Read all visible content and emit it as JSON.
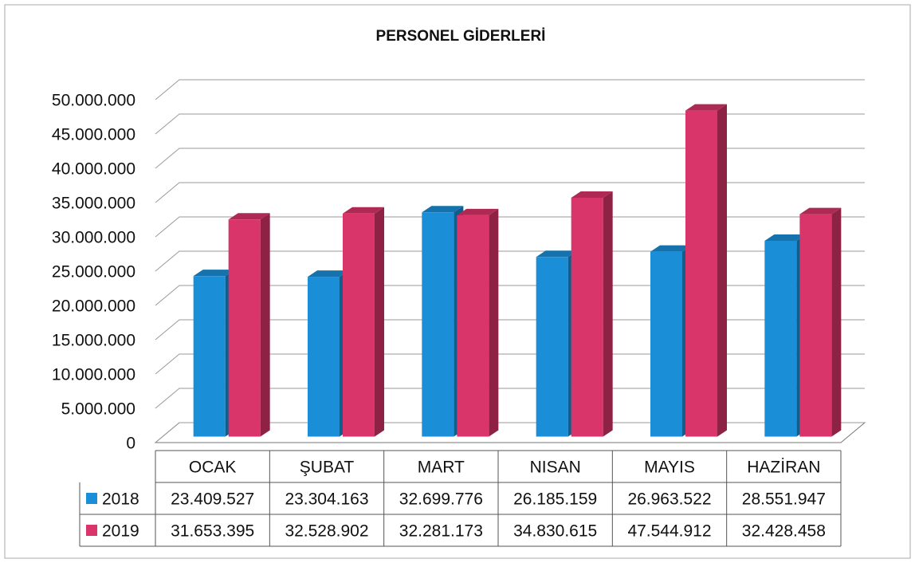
{
  "chart_data": {
    "type": "bar3d",
    "title": "PERSONEL GİDERLERİ",
    "categories": [
      "OCAK",
      "ŞUBAT",
      "MART",
      "NISAN",
      "MAYIS",
      "HAZİRAN"
    ],
    "series": [
      {
        "name": "2018",
        "color": "#1a8fd8",
        "values": [
          23409527,
          23304163,
          32699776,
          26185159,
          26963522,
          28551947
        ],
        "value_labels": [
          "23.409.527",
          "23.304.163",
          "32.699.776",
          "26.185.159",
          "26.963.522",
          "28.551.947"
        ]
      },
      {
        "name": "2019",
        "color": "#d9356a",
        "values": [
          31653395,
          32528902,
          32281173,
          34830615,
          47544912,
          32428458
        ],
        "value_labels": [
          "31.653.395",
          "32.528.902",
          "32.281.173",
          "34.830.615",
          "47.544.912",
          "32.428.458"
        ]
      }
    ],
    "ylim": [
      0,
      50000000
    ],
    "yticks": [
      0,
      {
        "value": 5000000,
        "label": "5.000.000"
      },
      {
        "value": 10000000,
        "label": "10.000.000"
      },
      {
        "value": 15000000,
        "label": "15.000.000"
      },
      {
        "value": 20000000,
        "label": "20.000.000"
      },
      {
        "value": 25000000,
        "label": "25.000.000"
      },
      {
        "value": 30000000,
        "label": "30.000.000"
      },
      {
        "value": 35000000,
        "label": "35.000.000"
      },
      {
        "value": 40000000,
        "label": "40.000.000"
      },
      {
        "value": 45000000,
        "label": "45.000.000"
      },
      {
        "value": 50000000,
        "label": "50.000.000"
      }
    ],
    "grid": true
  }
}
